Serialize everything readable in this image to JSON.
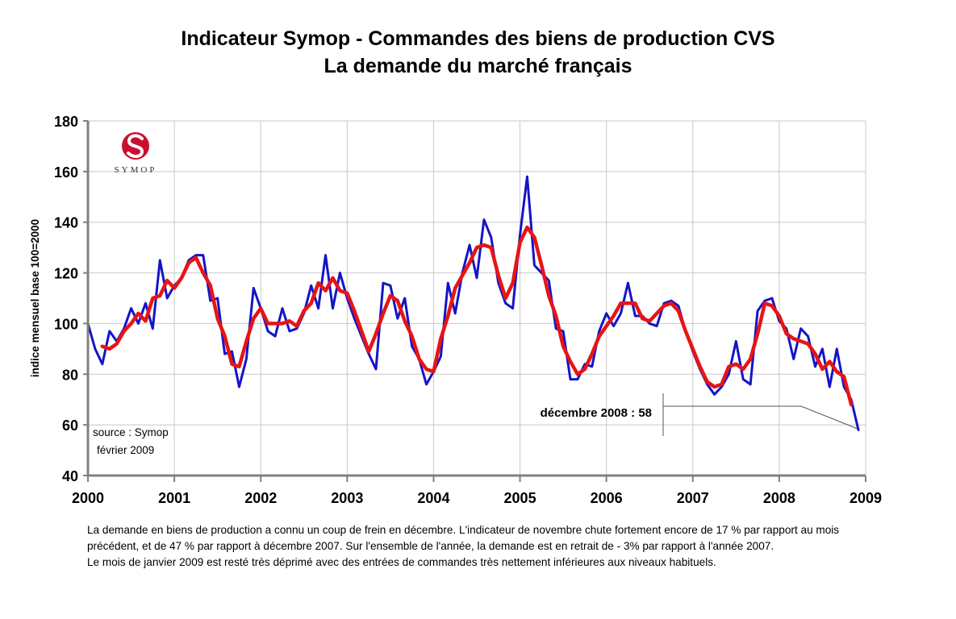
{
  "title": "Indicateur Symop - Commandes des biens de production CVS",
  "subtitle": "La demande du marché français",
  "logo": {
    "text": "SYMOP",
    "color": "#c8102e"
  },
  "source_line1": "source : Symop",
  "source_line2": "février  2009",
  "description": [
    "La demande en biens de production a connu un coup de frein en décembre.  L'indicateur de novembre chute fortement encore de 17 % par rapport au mois précédent, et de 47 % par rapport à décembre 2007.  Sur l'ensemble de l'année, la demande est en retrait de - 3% par rapport à l'année 2007.",
    "Le mois de janvier 2009 est resté très déprimé avec des entrées de commandes  très nettement inférieures aux niveaux  habituels."
  ],
  "colors": {
    "monthly": "#1414c8",
    "smoothed": "#e81414"
  },
  "chart_data": {
    "type": "line",
    "title": "Indicateur Symop - Commandes des biens de production CVS",
    "subtitle": "La demande du marché français",
    "xlabel": "",
    "ylabel": "indice mensuel base 100=2000",
    "xlim": [
      2000,
      2009
    ],
    "ylim": [
      40,
      180
    ],
    "yticks": [
      40,
      60,
      80,
      100,
      120,
      140,
      160,
      180
    ],
    "xticks": [
      "2000",
      "2001",
      "2002",
      "2003",
      "2004",
      "2005",
      "2006",
      "2007",
      "2008",
      "2009"
    ],
    "grid": true,
    "annotation": {
      "text": "décembre 2008 : 58",
      "x": 2008.917,
      "y": 58
    },
    "series": [
      {
        "x_start": 2000.0,
        "step": 0.08333,
        "values": [
          100,
          90,
          84,
          97,
          93,
          98,
          106,
          100,
          108,
          98,
          125,
          110,
          115,
          118,
          125,
          127,
          127,
          109,
          110,
          88,
          89,
          75,
          86,
          114,
          106,
          97,
          95,
          106,
          97,
          98,
          104,
          115,
          106,
          127,
          106,
          120,
          110,
          102,
          95,
          88,
          82,
          116,
          115,
          102,
          110,
          91,
          86,
          76,
          81,
          87,
          116,
          104,
          120,
          131,
          118,
          141,
          134,
          116,
          108,
          106,
          135,
          158,
          123,
          120,
          117,
          98,
          97,
          78,
          78,
          84,
          83,
          97,
          104,
          99,
          104,
          116,
          103,
          103,
          100,
          99,
          108,
          109,
          107,
          97,
          89,
          82,
          76,
          72,
          75,
          80,
          93,
          78,
          76,
          105,
          109,
          110,
          101,
          98,
          86,
          98,
          95,
          83,
          90,
          75,
          90,
          75,
          70,
          58
        ]
      },
      {
        "x_start": 2000.1667,
        "step": 0.08333,
        "values": [
          91,
          90,
          92,
          97,
          100,
          104,
          101,
          110,
          111,
          117,
          114,
          118,
          124,
          126,
          120,
          115,
          102,
          95,
          84,
          83,
          93,
          102,
          106,
          100,
          100,
          100,
          101,
          99,
          105,
          108,
          116,
          113,
          118,
          113,
          112,
          105,
          97,
          89,
          96,
          104,
          111,
          109,
          101,
          95,
          86,
          82,
          81,
          94,
          103,
          114,
          119,
          124,
          130,
          131,
          130,
          119,
          110,
          116,
          132,
          138,
          134,
          123,
          111,
          103,
          91,
          85,
          80,
          82,
          88,
          95,
          99,
          103,
          108,
          108,
          108,
          102,
          101,
          104,
          107,
          108,
          105,
          97,
          90,
          83,
          77,
          75,
          76,
          83,
          84,
          82,
          86,
          96,
          108,
          107,
          103,
          96,
          94,
          93,
          92,
          88,
          82,
          85,
          81,
          79,
          68
        ]
      }
    ]
  }
}
